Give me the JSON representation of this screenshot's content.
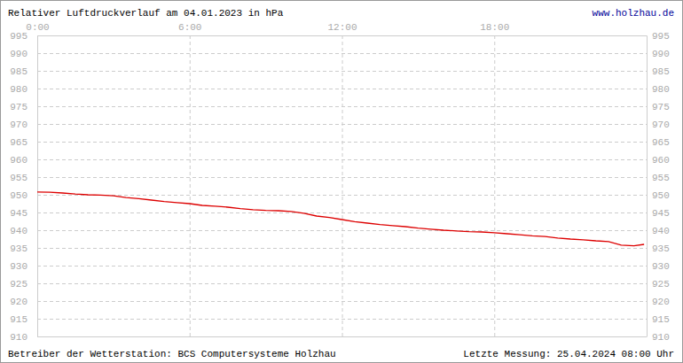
{
  "chart_data": {
    "type": "line",
    "title": "Relativer Luftdruckverlauf am 04.01.2023 in hPa",
    "link": "www.holzhau.de",
    "operator_note": "Betreiber der Wetterstation: BCS Computersysteme Holzhau",
    "last_measurement": "Letzte Messung: 25.04.2024 08:00 Uhr",
    "x": [
      0,
      0.5,
      1,
      1.5,
      2,
      2.5,
      3,
      3.5,
      4,
      4.5,
      5,
      5.5,
      6,
      6.5,
      7,
      7.5,
      8,
      8.5,
      9,
      9.5,
      10,
      10.5,
      11,
      11.5,
      12,
      12.5,
      13,
      13.5,
      14,
      14.5,
      15,
      15.5,
      16,
      16.5,
      17,
      17.5,
      18,
      18.5,
      19,
      19.5,
      20,
      20.5,
      21,
      21.5,
      22,
      22.5,
      23,
      23.5,
      23.9
    ],
    "series": [
      {
        "color": "#dd0000",
        "values": [
          950.8,
          950.7,
          950.5,
          950.2,
          950.0,
          949.9,
          949.7,
          949.2,
          948.9,
          948.5,
          948.1,
          947.8,
          947.5,
          947.0,
          946.8,
          946.5,
          946.1,
          945.8,
          945.6,
          945.5,
          945.3,
          944.8,
          944.0,
          943.6,
          943.0,
          942.4,
          942.0,
          941.6,
          941.3,
          941.0,
          940.6,
          940.3,
          940.0,
          939.8,
          939.6,
          939.5,
          939.3,
          939.0,
          938.7,
          938.4,
          938.2,
          937.8,
          937.5,
          937.3,
          937.0,
          936.8,
          935.8,
          935.6,
          936.0
        ]
      }
    ],
    "xlim": [
      0,
      24
    ],
    "xticks": [
      {
        "value": 0,
        "label": "0:00"
      },
      {
        "value": 6,
        "label": "6:00"
      },
      {
        "value": 12,
        "label": "12:00"
      },
      {
        "value": 18,
        "label": "18:00"
      }
    ],
    "ylim": [
      910,
      995
    ],
    "yticks": [
      910,
      915,
      920,
      925,
      930,
      935,
      940,
      945,
      950,
      955,
      960,
      965,
      970,
      975,
      980,
      985,
      990,
      995
    ],
    "grid": true
  }
}
